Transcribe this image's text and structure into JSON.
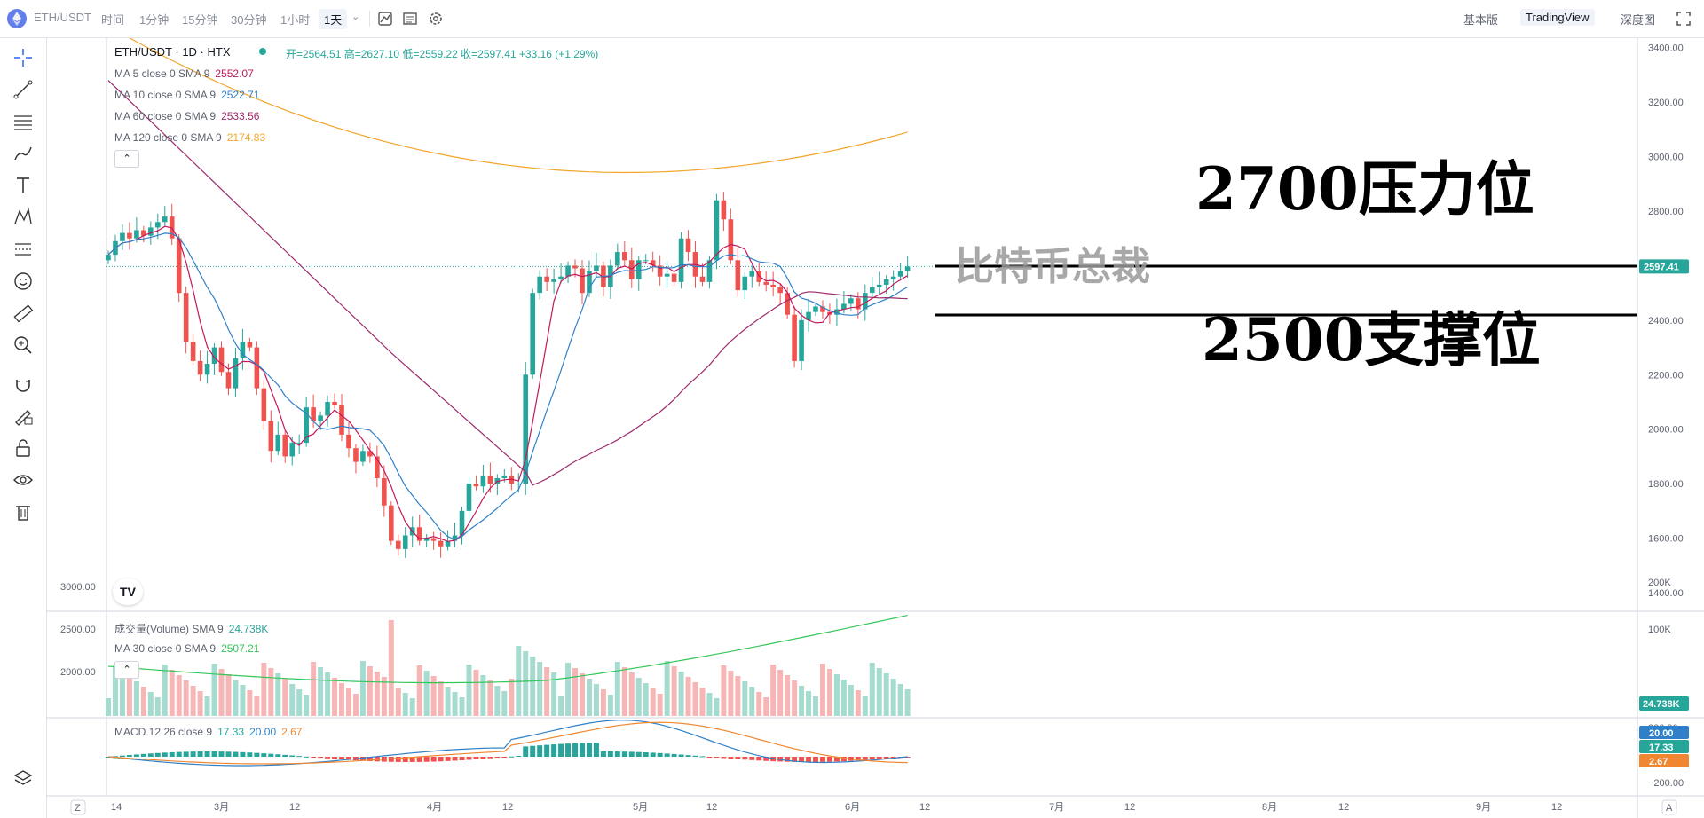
{
  "toolbar": {
    "symbol": "ETH/USDT",
    "intervals": [
      "时间",
      "1分钟",
      "15分钟",
      "30分钟",
      "1小时",
      "1天"
    ],
    "active_interval": "1天",
    "views": [
      "基本版",
      "TradingView",
      "深度图"
    ],
    "active_view": "TradingView"
  },
  "main_legend": {
    "title": "ETH/USDT · 1D · HTX",
    "ohlc": "开=2564.51 高=2627.10 低=2559.22 收=2597.41 +33.16 (+1.29%)",
    "ma": [
      {
        "label": "MA 5 close 0 SMA 9",
        "value": "2552.07",
        "color": "#c2185b"
      },
      {
        "label": "MA 10 close 0 SMA 9",
        "value": "2522.71",
        "color": "#2f80c8"
      },
      {
        "label": "MA 60 close 0 SMA 9",
        "value": "2533.56",
        "color": "#9c2a6b"
      },
      {
        "label": "MA 120 close 0 SMA 9",
        "value": "2174.83",
        "color": "#f2a52a"
      }
    ]
  },
  "annotations": {
    "resistance_text": "2700压力位",
    "support_text": "2500支撑位",
    "watermark": "比特币总裁"
  },
  "price_axis": {
    "ticks": [
      "3400.00",
      "3200.00",
      "3000.00",
      "2800.00",
      "2600.00",
      "2400.00",
      "2200.00",
      "2000.00",
      "1800.00",
      "1600.00",
      "1400.00"
    ],
    "last_price": "2597.41"
  },
  "volume_pane": {
    "legend_volume": "成交量(Volume) SMA 9",
    "volume_value": "24.738K",
    "legend_ma": "MA 30 close 0 SMA 9",
    "ma_value": "2507.21",
    "left_ticks": [
      "3000.00",
      "2500.00",
      "2000.00"
    ],
    "right_ticks": [
      "200K",
      "100K"
    ],
    "last_tag": "24.738K"
  },
  "macd_pane": {
    "legend": "MACD 12 26 close 9",
    "v1": "17.33",
    "v2": "20.00",
    "v3": "2.67",
    "ticks": [
      "200.00",
      "−200.00"
    ],
    "tags": [
      "20.00",
      "17.33",
      "2.67"
    ]
  },
  "time_axis": {
    "labels": [
      "14",
      "3月",
      "12",
      "4月",
      "12",
      "5月",
      "12",
      "6月",
      "12",
      "7月",
      "12",
      "8月",
      "12",
      "9月",
      "12"
    ],
    "left_button": "Z",
    "right_button": "A"
  },
  "colors": {
    "up": "#26a69a",
    "down": "#ef5350",
    "ma5": "#c2185b",
    "ma10": "#2f80c8",
    "ma60": "#9c2a6b",
    "ma120": "#f2a52a",
    "vol_ma": "#34c759",
    "macd_line": "#2f80c8",
    "signal_line": "#f0862f"
  },
  "chart_data": {
    "type": "candlestick",
    "note_ohlc": "daily ETH/USDT approximate closes Feb 14 – Jul 10",
    "closes": [
      2640,
      2690,
      2720,
      2700,
      2730,
      2710,
      2740,
      2760,
      2780,
      2700,
      2500,
      2320,
      2250,
      2200,
      2240,
      2300,
      2210,
      2150,
      2260,
      2320,
      2300,
      2150,
      2030,
      1920,
      1980,
      1900,
      1950,
      1950,
      2080,
      2030,
      2050,
      2100,
      2090,
      1980,
      1930,
      1880,
      1920,
      1900,
      1820,
      1720,
      1590,
      1560,
      1610,
      1640,
      1590,
      1600,
      1590,
      1570,
      1590,
      1610,
      1700,
      1800,
      1790,
      1830,
      1800,
      1820,
      1830,
      1800,
      1800,
      2200,
      2500,
      2560,
      2540,
      2550,
      2560,
      2600,
      2590,
      2500,
      2580,
      2600,
      2520,
      2600,
      2650,
      2620,
      2550,
      2620,
      2620,
      2600,
      2560,
      2570,
      2540,
      2700,
      2650,
      2560,
      2540,
      2620,
      2840,
      2770,
      2620,
      2510,
      2560,
      2580,
      2540,
      2530,
      2520,
      2500,
      2420,
      2250,
      2400,
      2430,
      2450,
      2430,
      2420,
      2440,
      2460,
      2480,
      2440,
      2500,
      2520,
      2530,
      2550,
      2560,
      2580,
      2597
    ],
    "ylim": [
      1300,
      3500
    ],
    "levels": [
      2700,
      2500
    ]
  }
}
